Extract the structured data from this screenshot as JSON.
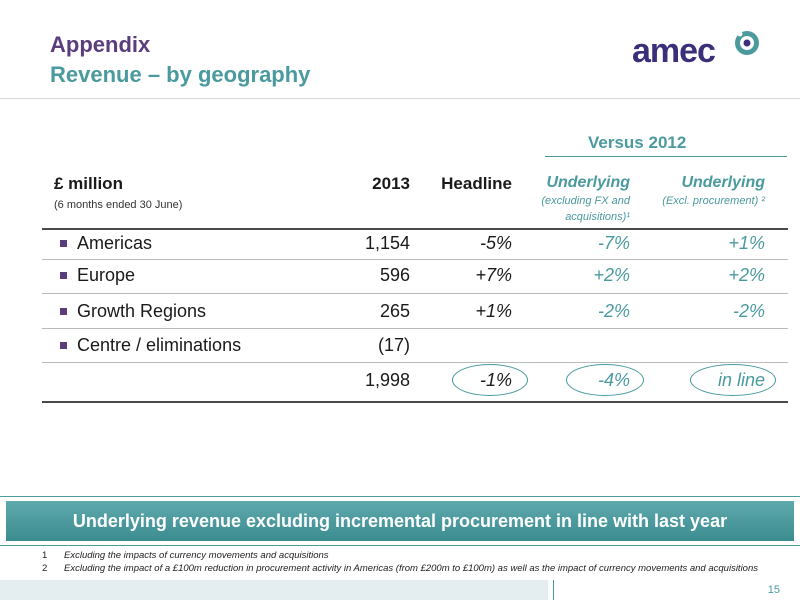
{
  "header": {
    "title": "Appendix",
    "subtitle": "Revenue – by geography",
    "logo_text": "amec"
  },
  "table": {
    "group_header": "Versus 2012",
    "col_label": "£ million",
    "col_label_sub": "(6 months ended 30 June)",
    "col_2013": "2013",
    "col_headline": "Headline",
    "col_underlying1": "Underlying",
    "col_underlying1_sub_a": "(excluding FX and",
    "col_underlying1_sub_b": "acquisitions)¹",
    "col_underlying2": "Underlying",
    "col_underlying2_sub": "(Excl. procurement) ²",
    "rows": [
      {
        "label": "Americas",
        "v2013": "1,154",
        "headline": "-5%",
        "und1": "-7%",
        "und2": "+1%"
      },
      {
        "label": "Europe",
        "v2013": "596",
        "headline": "+7%",
        "und1": "+2%",
        "und2": "+2%"
      },
      {
        "label": "Growth Regions",
        "v2013": "265",
        "headline": "+1%",
        "und1": "-2%",
        "und2": "-2%"
      },
      {
        "label": "Centre / eliminations",
        "v2013": "(17)",
        "headline": "",
        "und1": "",
        "und2": ""
      }
    ],
    "total": {
      "v2013": "1,998",
      "headline": "-1%",
      "und1": "-4%",
      "und2": "in line"
    }
  },
  "banner": "Underlying revenue excluding incremental procurement in line with last year",
  "footnotes": [
    {
      "num": "1",
      "text": "Excluding the impacts of currency movements and acquisitions"
    },
    {
      "num": "2",
      "text": "Excluding the impact of a £100m reduction in procurement activity in Americas (from £200m to £100m) as well as the impact of currency movements and acquisitions"
    }
  ],
  "page_number": "15",
  "colors": {
    "purple": "#5b3d7e",
    "teal": "#4a9a9e"
  }
}
